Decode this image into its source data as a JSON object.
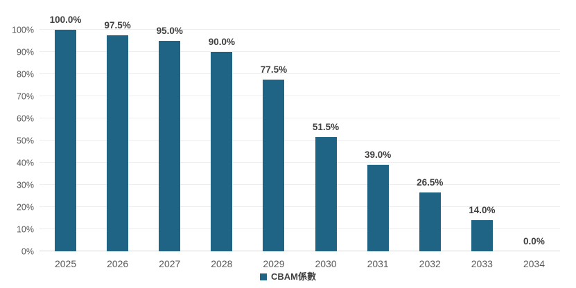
{
  "chart_data": {
    "type": "bar",
    "title": "",
    "xlabel": "",
    "ylabel": "",
    "categories": [
      "2025",
      "2026",
      "2027",
      "2028",
      "2029",
      "2030",
      "2031",
      "2032",
      "2033",
      "2034"
    ],
    "series": [
      {
        "name": "CBAM係數",
        "values": [
          100.0,
          97.5,
          95.0,
          90.0,
          77.5,
          51.5,
          39.0,
          26.5,
          14.0,
          0.0
        ],
        "data_labels": [
          "100.0%",
          "97.5%",
          "95.0%",
          "90.0%",
          "77.5%",
          "51.5%",
          "39.0%",
          "26.5%",
          "14.0%",
          "0.0%"
        ]
      }
    ],
    "ylim": [
      0,
      100
    ],
    "ytick_labels": [
      "0%",
      "10%",
      "20%",
      "30%",
      "40%",
      "50%",
      "60%",
      "70%",
      "80%",
      "90%",
      "100%"
    ],
    "grid": true,
    "legend_position": "bottom-center",
    "colors": {
      "bar": "#1f6484",
      "data_label": "#404040",
      "tick_label": "#595959",
      "gridline": "#ededed",
      "axis_line": "#d6d6d6",
      "background": "#ffffff"
    }
  },
  "legend": {
    "marker": "square-icon",
    "label": "CBAM係數"
  }
}
